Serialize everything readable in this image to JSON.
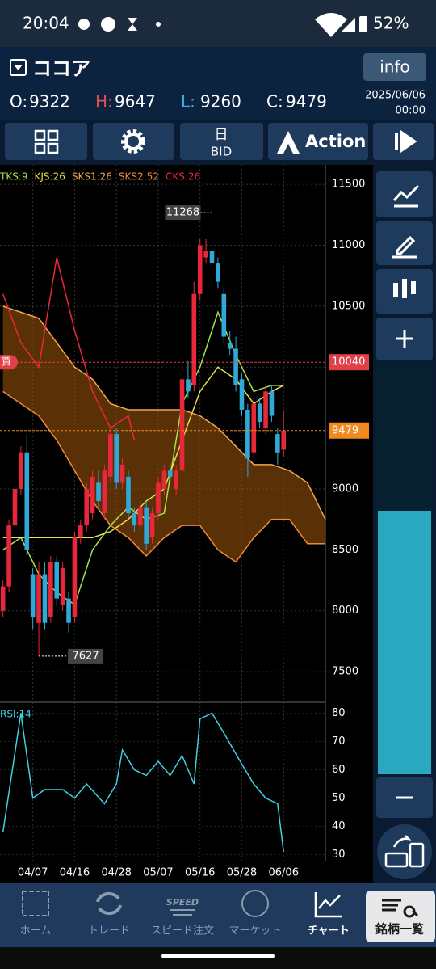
{
  "status_bar": {
    "time": "20:04",
    "battery": "52%"
  },
  "header": {
    "symbol": "ココア",
    "info_button": "info",
    "ohlc": [
      {
        "label": "O:",
        "value": 9322
      },
      {
        "label": "H:",
        "value": 9647
      },
      {
        "label": "L:",
        "value": 9260
      },
      {
        "label": "C:",
        "value": 9479
      }
    ],
    "date": "2025/06/06",
    "time": "00:00"
  },
  "toolbar": {
    "period": "日",
    "price_type": "BID",
    "action": "Action"
  },
  "chart": {
    "type": "candlestick",
    "candles": {
      "open": [
        8000,
        8200,
        8700,
        9000,
        9300,
        8300,
        7900,
        8300,
        7950,
        8400,
        8050,
        8100,
        7950,
        8600,
        8700,
        8800,
        9050,
        8800,
        9100,
        9450,
        9050,
        9100,
        8800,
        8700,
        8850,
        8600,
        8800,
        9000,
        9150,
        9000,
        9150,
        9900,
        9850,
        10600,
        10900,
        10950,
        10850,
        10600,
        10200,
        10150,
        9900,
        9650,
        9300,
        9700,
        9500,
        9800,
        9450,
        9322
      ],
      "high": [
        8250,
        8750,
        9050,
        9350,
        9450,
        8350,
        8400,
        8400,
        8450,
        8450,
        8400,
        8150,
        8650,
        8750,
        9050,
        9150,
        9150,
        9200,
        9500,
        9500,
        9250,
        9150,
        8850,
        8900,
        8900,
        8850,
        9100,
        9200,
        9200,
        9200,
        9950,
        10050,
        10700,
        11050,
        11050,
        11268,
        10900,
        10650,
        10300,
        10250,
        9950,
        9700,
        9750,
        9750,
        9850,
        9850,
        9500,
        9647
      ],
      "low": [
        7950,
        8150,
        8650,
        8950,
        8450,
        7850,
        7627,
        7850,
        7900,
        8050,
        8000,
        7820,
        7900,
        8550,
        8650,
        8750,
        8850,
        8750,
        9050,
        9000,
        9000,
        8750,
        8650,
        8650,
        8500,
        8550,
        8750,
        8950,
        9050,
        8950,
        9100,
        9750,
        9800,
        10550,
        10850,
        10800,
        10650,
        10200,
        10100,
        9800,
        9600,
        9100,
        9250,
        9500,
        9450,
        9550,
        9200,
        9260
      ],
      "close": [
        8200,
        8700,
        9000,
        9300,
        8500,
        7950,
        8300,
        7900,
        8400,
        8100,
        8350,
        7900,
        8600,
        8700,
        9000,
        9100,
        8900,
        9150,
        9450,
        9050,
        9200,
        8800,
        8700,
        8850,
        8550,
        8800,
        9050,
        9150,
        9100,
        9150,
        9900,
        9800,
        10600,
        11000,
        10950,
        10850,
        10700,
        10250,
        10150,
        9850,
        9650,
        9250,
        9700,
        9550,
        9800,
        9600,
        9300,
        9479
      ]
    },
    "xlim": [
      -0.5,
      54
    ],
    "ylim": [
      7255,
      11660
    ],
    "yticks": [
      7500,
      8000,
      8500,
      9000,
      9500,
      10000,
      10500,
      11000,
      11500
    ],
    "xticks": [
      {
        "value": 5,
        "label": "04/07"
      },
      {
        "value": 12,
        "label": "04/16"
      },
      {
        "value": 19,
        "label": "04/28"
      },
      {
        "value": 26,
        "label": "05/07"
      },
      {
        "value": 33,
        "label": "05/16"
      },
      {
        "value": 40,
        "label": "05/28"
      },
      {
        "value": 47,
        "label": "06/06"
      }
    ],
    "series": [
      {
        "name": "TKS:9",
        "color": "#a6e34c",
        "x": [
          0,
          3,
          6,
          9,
          12,
          15,
          18,
          21,
          24,
          27,
          30,
          33,
          36,
          39,
          42,
          45,
          47
        ],
        "values": [
          8500,
          8600,
          8300,
          8150,
          8050,
          8500,
          8700,
          8850,
          8750,
          8800,
          9700,
          10000,
          10450,
          10100,
          9800,
          9850,
          9850
        ]
      },
      {
        "name": "KJS:26",
        "color": "#e8e04a",
        "x": [
          0,
          3,
          6,
          9,
          12,
          15,
          18,
          21,
          24,
          27,
          30,
          33,
          36,
          39,
          42,
          45,
          47
        ],
        "values": [
          8600,
          8600,
          8600,
          8600,
          8600,
          8600,
          8650,
          8750,
          8900,
          9000,
          9400,
          9800,
          10000,
          9900,
          9700,
          9800,
          9850
        ]
      },
      {
        "name": "SKS1:26",
        "color": "#f0a850",
        "x": [
          0,
          3,
          6,
          9,
          12,
          15,
          18,
          21,
          24,
          27,
          30,
          33,
          36,
          39,
          42,
          45,
          48,
          51,
          54
        ],
        "values": [
          10500,
          10450,
          10400,
          10200,
          10000,
          9900,
          9700,
          9650,
          9650,
          9650,
          9650,
          9600,
          9500,
          9350,
          9200,
          9200,
          9150,
          9050,
          8750
        ]
      },
      {
        "name": "SKS2:52",
        "color": "#f08a3a",
        "x": [
          0,
          3,
          6,
          9,
          12,
          15,
          18,
          21,
          24,
          27,
          30,
          33,
          36,
          39,
          42,
          45,
          48,
          51,
          54
        ],
        "values": [
          9800,
          9700,
          9600,
          9400,
          9150,
          8900,
          8700,
          8600,
          8450,
          8600,
          8700,
          8700,
          8500,
          8400,
          8600,
          8750,
          8750,
          8550,
          8550
        ]
      },
      {
        "name": "CKS:26",
        "color": "#e8283a",
        "x": [
          0,
          3,
          6,
          9,
          12,
          15,
          18,
          21,
          22
        ],
        "values": [
          10600,
          10200,
          10000,
          10900,
          10300,
          9800,
          9500,
          9600,
          9400
        ]
      }
    ],
    "price_lines": [
      {
        "value": 10040,
        "color": "#e0404a",
        "tag": "買"
      },
      {
        "value": 9479,
        "color": "#f08a20"
      }
    ]
  },
  "rsi": {
    "type": "line",
    "name": "RSI:14",
    "color": "#40d0e0",
    "x": [
      0,
      3,
      5,
      7,
      10,
      12,
      14,
      17,
      19,
      20,
      22,
      24,
      26,
      28,
      30,
      32,
      33,
      35,
      37,
      40,
      42,
      44,
      46,
      47
    ],
    "values": [
      38,
      80,
      50,
      53,
      53,
      50,
      55,
      48,
      55,
      67,
      60,
      58,
      63,
      58,
      65,
      55,
      78,
      80,
      73,
      62,
      55,
      50,
      48,
      31
    ],
    "ylim": [
      27,
      83
    ],
    "yticks": [
      30,
      40,
      50,
      60,
      70,
      80
    ]
  },
  "nav": {
    "items": [
      "ホーム",
      "トレード",
      "スピード注文",
      "マーケット",
      "チャート",
      "銘柄一覧"
    ],
    "speed_icon": "SPEED"
  }
}
